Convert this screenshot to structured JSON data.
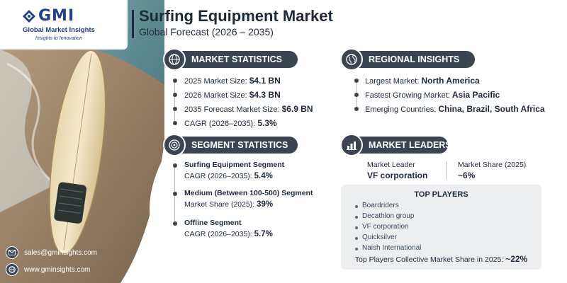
{
  "brand": {
    "logo_text": "GMI",
    "name": "Global Market Insights",
    "tagline": "Insights to Innovation"
  },
  "header": {
    "title": "Surfing Equipment Market",
    "subtitle": "Global Forecast (2026 – 2035)"
  },
  "market_statistics": {
    "heading": "MARKET STATISTICS",
    "icon": "globe-dollar-icon",
    "items": [
      {
        "label": "2025 Market Size: ",
        "value": "$4.1 BN"
      },
      {
        "label": "2026 Market Size: ",
        "value": "$4.3 BN"
      },
      {
        "label": "2035 Forecast Market Size: ",
        "value": "$6.9 BN"
      },
      {
        "label": "CAGR (2026–2035): ",
        "value": "5.3%"
      }
    ]
  },
  "regional_insights": {
    "heading": "REGIONAL INSIGHTS",
    "icon": "globe-icon",
    "items": [
      {
        "label": "Largest Market: ",
        "value": "North America"
      },
      {
        "label": "Fastest Growing Market: ",
        "value": "Asia Pacific"
      },
      {
        "label": "Emerging Countries: ",
        "value": "China, Brazil, South Africa"
      }
    ]
  },
  "segment_statistics": {
    "heading": "SEGMENT STATISTICS",
    "icon": "target-icon",
    "items": [
      {
        "title": "Surfing Equipment Segment",
        "label": "CAGR (2026–2035): ",
        "value": "5.4%"
      },
      {
        "title": "Medium (Between 100-500) Segment",
        "label": "Market Share (2025): ",
        "value": "39%"
      },
      {
        "title": "Offline Segment",
        "label": "CAGR (2026–2035): ",
        "value": "5.7%"
      }
    ]
  },
  "market_leaders": {
    "heading": "MARKET LEADERS",
    "icon": "bar-chart-icon",
    "leader_label": "Market Leader",
    "leader_value": "VF corporation",
    "share_label": "Market Share (2025)",
    "share_value": "~6%"
  },
  "top_players": {
    "heading": "TOP PLAYERS",
    "items": [
      "Boardriders",
      "Decathlon group",
      "VF corporation",
      "Quicksilver",
      "Naish International"
    ],
    "footer_label": "Top Players Collective Market Share in 2025: ",
    "footer_value": "~22%"
  },
  "contact": {
    "email": "sales@gminsights.com",
    "website": "www.gminsights.com"
  },
  "colors": {
    "dark": "#3a4452",
    "brand": "#23408e",
    "panel": "#eceef0"
  }
}
